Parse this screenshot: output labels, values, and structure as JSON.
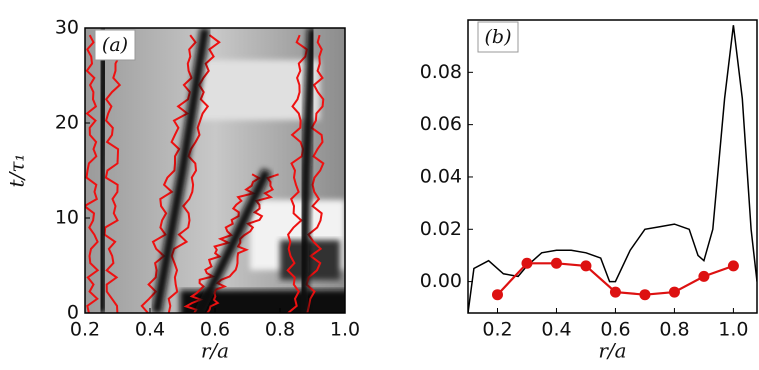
{
  "chart_data": [
    {
      "type": "heatmap",
      "panel_label": "(a)",
      "x_label": "r/a",
      "y_label": "t/τ₁",
      "xlim": [
        0.2,
        1.0
      ],
      "ylim": [
        0,
        30
      ],
      "xticks": [
        0.2,
        0.4,
        0.6,
        0.8,
        {
          "value": 1.0,
          "label": "1.0"
        }
      ],
      "yticks": [
        0,
        10,
        20,
        30
      ],
      "color": "#111111",
      "trace_color": "#ee1111",
      "series": [
        {
          "x": [
            0.25,
            0.25,
            0.26
          ],
          "values": [
            0,
            15,
            30
          ]
        },
        {
          "x": [
            0.42,
            0.5,
            0.57
          ],
          "values": [
            0,
            15,
            30
          ]
        },
        {
          "x": [
            0.55,
            0.65,
            0.76
          ],
          "values": [
            0,
            7,
            15
          ]
        },
        {
          "x": [
            0.87,
            0.88,
            0.9
          ],
          "values": [
            0,
            15,
            30
          ]
        }
      ]
    },
    {
      "type": "line",
      "panel_label": "(b)",
      "x_label": "r/a",
      "xlim": [
        0.1,
        1.08
      ],
      "ylim": [
        -0.012,
        0.1
      ],
      "xticks": [
        0.2,
        0.4,
        0.6,
        0.8,
        {
          "value": 1.0,
          "label": "1.0"
        }
      ],
      "yticks": [
        {
          "value": 0,
          "label": "0.00"
        },
        0.02,
        0.04,
        0.06,
        0.08
      ],
      "series": [
        {
          "color": "#000000",
          "markers": false,
          "x": [
            0.1,
            0.12,
            0.17,
            0.22,
            0.27,
            0.3,
            0.35,
            0.4,
            0.45,
            0.5,
            0.55,
            0.58,
            0.6,
            0.65,
            0.7,
            0.75,
            0.8,
            0.85,
            0.88,
            0.9,
            0.93,
            0.97,
            1.0,
            1.03,
            1.06,
            1.08
          ],
          "values": [
            -0.012,
            0.005,
            0.008,
            0.003,
            0.002,
            0.006,
            0.011,
            0.012,
            0.012,
            0.011,
            0.009,
            0.0,
            0.0,
            0.012,
            0.02,
            0.021,
            0.022,
            0.02,
            0.01,
            0.008,
            0.02,
            0.07,
            0.098,
            0.07,
            0.02,
            0.0
          ]
        },
        {
          "color": "#dd1111",
          "markers": true,
          "x": [
            0.2,
            0.3,
            0.4,
            0.5,
            0.6,
            0.7,
            0.8,
            0.9,
            1.0
          ],
          "values": [
            -0.005,
            0.007,
            0.007,
            0.006,
            -0.004,
            -0.005,
            -0.004,
            0.002,
            0.006
          ]
        }
      ]
    }
  ]
}
